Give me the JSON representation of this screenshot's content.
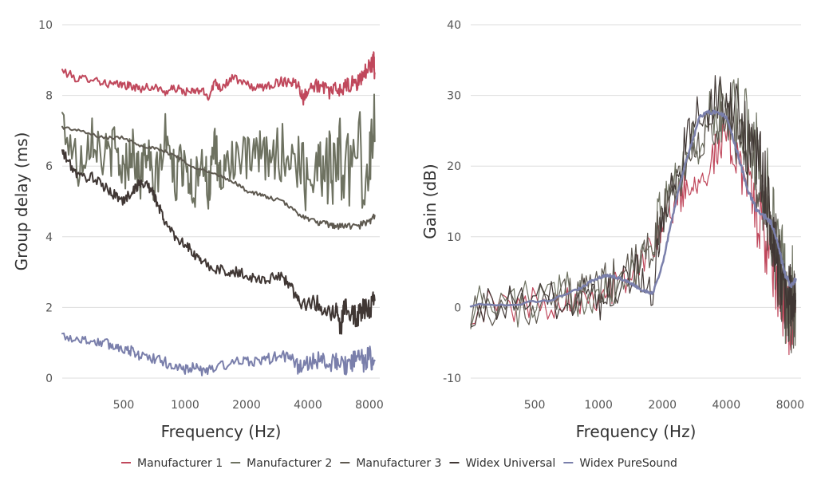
{
  "chart_data": [
    {
      "type": "line",
      "xlabel": "Frequency (Hz)",
      "ylabel": "Group delay (ms)",
      "xscale": "log",
      "xlim": [
        250,
        9000
      ],
      "ylim": [
        0,
        10
      ],
      "xticks": [
        500,
        1000,
        2000,
        4000,
        8000
      ],
      "yticks": [
        0,
        2,
        4,
        6,
        8,
        10
      ],
      "grid": true,
      "series": [
        {
          "name": "Manufacturer 1",
          "color": "#c0485c",
          "width": 2,
          "noise": 0.12,
          "x": [
            250,
            300,
            350,
            400,
            450,
            500,
            550,
            600,
            700,
            800,
            900,
            1000,
            1100,
            1200,
            1300,
            1400,
            1500,
            1700,
            2000,
            2300,
            2600,
            3000,
            3300,
            3600,
            3800,
            4000,
            4500,
            5000,
            5500,
            6000,
            6500,
            7000,
            7500,
            8000,
            8400,
            8500
          ],
          "y": [
            8.7,
            8.45,
            8.5,
            8.35,
            8.3,
            8.3,
            8.25,
            8.2,
            8.25,
            8.1,
            8.2,
            8.1,
            8.1,
            8.15,
            7.95,
            8.4,
            8.2,
            8.5,
            8.3,
            8.2,
            8.3,
            8.4,
            8.4,
            8.3,
            7.9,
            8.2,
            8.3,
            8.1,
            8.15,
            8.2,
            8.3,
            8.35,
            8.6,
            8.8,
            9.0,
            8.6
          ]
        },
        {
          "name": "Manufacturer 2",
          "color": "#6e7261",
          "width": 2,
          "noise": 0.7,
          "x": [
            250,
            300,
            350,
            400,
            450,
            500,
            550,
            600,
            650,
            700,
            800,
            900,
            1000,
            1100,
            1200,
            1300,
            1400,
            1500,
            1700,
            2000,
            2300,
            2600,
            3000,
            3500,
            4000,
            4500,
            5000,
            5500,
            6000,
            7000,
            8000,
            8500
          ],
          "y": [
            7.3,
            6.0,
            7.0,
            6.2,
            6.5,
            5.8,
            6.6,
            5.6,
            6.5,
            5.3,
            6.8,
            5.6,
            6.3,
            5.2,
            6.5,
            5.3,
            6.4,
            5.6,
            6.3,
            6.1,
            6.3,
            6.2,
            6.4,
            6.2,
            5.6,
            6.3,
            6.0,
            6.2,
            6.0,
            6.2,
            6.0,
            6.7
          ]
        },
        {
          "name": "Manufacturer 3",
          "color": "#5e5950",
          "width": 2,
          "noise": 0.05,
          "x": [
            250,
            300,
            400,
            500,
            600,
            700,
            800,
            900,
            1000,
            1200,
            1500,
            1800,
            2000,
            2300,
            2600,
            3000,
            3500,
            4000,
            4500,
            5000,
            5500,
            6000,
            7000,
            8000,
            8500
          ],
          "y": [
            7.1,
            7.0,
            6.8,
            6.8,
            6.6,
            6.5,
            6.4,
            6.3,
            6.1,
            5.9,
            5.7,
            5.5,
            5.3,
            5.2,
            5.1,
            5.0,
            4.7,
            4.5,
            4.4,
            4.35,
            4.3,
            4.3,
            4.3,
            4.4,
            4.6
          ]
        },
        {
          "name": "Widex Universal",
          "color": "#403734",
          "width": 2,
          "noise": 0.15,
          "x": [
            250,
            270,
            300,
            350,
            400,
            450,
            500,
            550,
            600,
            650,
            700,
            750,
            800,
            900,
            1000,
            1100,
            1200,
            1400,
            1600,
            1800,
            2000,
            2300,
            2600,
            3000,
            3300,
            3600,
            4000,
            4500,
            5000,
            5500,
            5800,
            6000,
            6500,
            7000,
            7500,
            8000,
            8500
          ],
          "y": [
            6.4,
            6.1,
            5.7,
            5.7,
            5.4,
            5.2,
            5.0,
            5.3,
            5.5,
            5.5,
            5.2,
            4.8,
            4.4,
            4.0,
            3.8,
            3.5,
            3.3,
            3.1,
            3.0,
            3.0,
            2.9,
            2.8,
            2.8,
            2.9,
            2.6,
            2.2,
            2.1,
            2.1,
            1.9,
            1.9,
            1.4,
            2.0,
            1.9,
            1.7,
            2.0,
            1.9,
            2.2
          ]
        },
        {
          "name": "Widex PureSound",
          "color": "#7a7fab",
          "width": 2,
          "noise": 0.15,
          "x": [
            250,
            300,
            350,
            400,
            450,
            500,
            550,
            600,
            700,
            800,
            900,
            1000,
            1100,
            1200,
            1300,
            1500,
            1800,
            2000,
            2300,
            2600,
            3000,
            3300,
            3600,
            4000,
            4500,
            5000,
            5500,
            6000,
            6500,
            7000,
            7500,
            8000,
            8500
          ],
          "y": [
            1.2,
            1.1,
            1.05,
            1.0,
            0.9,
            0.85,
            0.75,
            0.65,
            0.55,
            0.45,
            0.3,
            0.25,
            0.3,
            0.2,
            0.25,
            0.35,
            0.45,
            0.45,
            0.5,
            0.55,
            0.65,
            0.55,
            0.3,
            0.45,
            0.5,
            0.4,
            0.45,
            0.35,
            0.4,
            0.55,
            0.5,
            0.6,
            0.5
          ]
        }
      ]
    },
    {
      "type": "line",
      "xlabel": "Frequency (Hz)",
      "ylabel": "Gain (dB)",
      "xscale": "log",
      "xlim": [
        250,
        9000
      ],
      "ylim": [
        -10,
        40
      ],
      "xticks": [
        500,
        1000,
        2000,
        4000,
        8000
      ],
      "yticks": [
        -10,
        0,
        10,
        20,
        30,
        40
      ],
      "grid": true,
      "series": [
        {
          "name": "Manufacturer 1",
          "color": "#c0485c",
          "width": 1.2,
          "noise": 2.5,
          "x": [
            250,
            400,
            600,
            800,
            1000,
            1200,
            1500,
            1800,
            2000,
            2300,
            2600,
            3000,
            3500,
            4000,
            4500,
            5000,
            5500,
            6000,
            6500,
            7000,
            7500,
            8000,
            8500
          ],
          "y": [
            0,
            0.3,
            0.8,
            1.5,
            2.0,
            3.0,
            5.0,
            9.0,
            12.0,
            15.0,
            17.0,
            19.0,
            21.0,
            24.0,
            22.0,
            18.0,
            14.0,
            10.0,
            6.0,
            2.0,
            0.0,
            -2.0,
            0.0
          ]
        },
        {
          "name": "Manufacturer 2",
          "color": "#6e7261",
          "width": 1.2,
          "noise": 3.5,
          "x": [
            250,
            400,
            600,
            800,
            1000,
            1200,
            1500,
            1800,
            2000,
            2300,
            2600,
            3000,
            3500,
            4000,
            4500,
            5000,
            5500,
            6000,
            6500,
            7000,
            7500,
            8000,
            8500
          ],
          "y": [
            0.2,
            0.4,
            1.0,
            2.0,
            3.0,
            4.0,
            6.0,
            10.0,
            14.0,
            18.0,
            21.0,
            24.0,
            27.0,
            28.0,
            27.0,
            25.0,
            22.0,
            18.0,
            14.0,
            8.0,
            3.0,
            1.0,
            2.0
          ]
        },
        {
          "name": "Manufacturer 3",
          "color": "#5e5950",
          "width": 1.2,
          "noise": 3.0,
          "x": [
            250,
            400,
            600,
            800,
            1000,
            1200,
            1500,
            1800,
            2000,
            2300,
            2600,
            3000,
            3500,
            4000,
            4500,
            5000,
            5500,
            6000,
            6500,
            7000,
            7500,
            8000,
            8500
          ],
          "y": [
            0.1,
            0.3,
            0.9,
            2.0,
            3.0,
            4.0,
            6.0,
            9.0,
            13.0,
            17.0,
            20.0,
            23.0,
            25.0,
            26.0,
            25.0,
            22.0,
            19.0,
            15.0,
            11.0,
            6.0,
            2.0,
            0.0,
            1.0
          ]
        },
        {
          "name": "Widex Universal",
          "color": "#403734",
          "width": 1.2,
          "noise": 3.0,
          "x": [
            250,
            400,
            600,
            800,
            1000,
            1200,
            1500,
            1800,
            2000,
            2300,
            2600,
            3000,
            3500,
            4000,
            4500,
            5000,
            5500,
            6000,
            6500,
            7000,
            7500,
            8000,
            8500
          ],
          "y": [
            -0.2,
            0.2,
            0.8,
            2.0,
            1.0,
            3.0,
            5.0,
            3.0,
            12.0,
            18.0,
            24.0,
            28.0,
            29.0,
            29.0,
            27.0,
            24.0,
            21.0,
            18.0,
            12.0,
            6.0,
            2.0,
            0.0,
            1.0
          ]
        },
        {
          "name": "Widex PureSound",
          "color": "#7a7fab",
          "width": 2.5,
          "noise": 0.2,
          "x": [
            250,
            400,
            600,
            800,
            900,
            1000,
            1100,
            1200,
            1300,
            1400,
            1500,
            1600,
            1700,
            1800,
            2000,
            2200,
            2400,
            2600,
            2800,
            3000,
            3300,
            3600,
            4000,
            4300,
            4600,
            5000,
            5500,
            6000,
            6500,
            7000,
            7500,
            8000,
            8500
          ],
          "y": [
            0.3,
            0.5,
            1.0,
            2.5,
            3.5,
            4.2,
            4.5,
            4.3,
            4.0,
            3.5,
            3.0,
            2.5,
            2.2,
            2.0,
            6.0,
            12.0,
            17.0,
            21.0,
            24.0,
            27.0,
            27.6,
            27.6,
            27.0,
            24.0,
            21.0,
            17.0,
            14.0,
            13.0,
            12.0,
            9.0,
            5.0,
            3.0,
            4.0
          ]
        }
      ]
    }
  ],
  "legend": {
    "placement": "bottom",
    "items": [
      {
        "label": "Manufacturer 1",
        "color": "#c0485c"
      },
      {
        "label": "Manufacturer 2",
        "color": "#6e7261"
      },
      {
        "label": "Manufacturer 3",
        "color": "#5e5950"
      },
      {
        "label": "Widex Universal",
        "color": "#403734"
      },
      {
        "label": "Widex PureSound",
        "color": "#7a7fab"
      }
    ]
  }
}
